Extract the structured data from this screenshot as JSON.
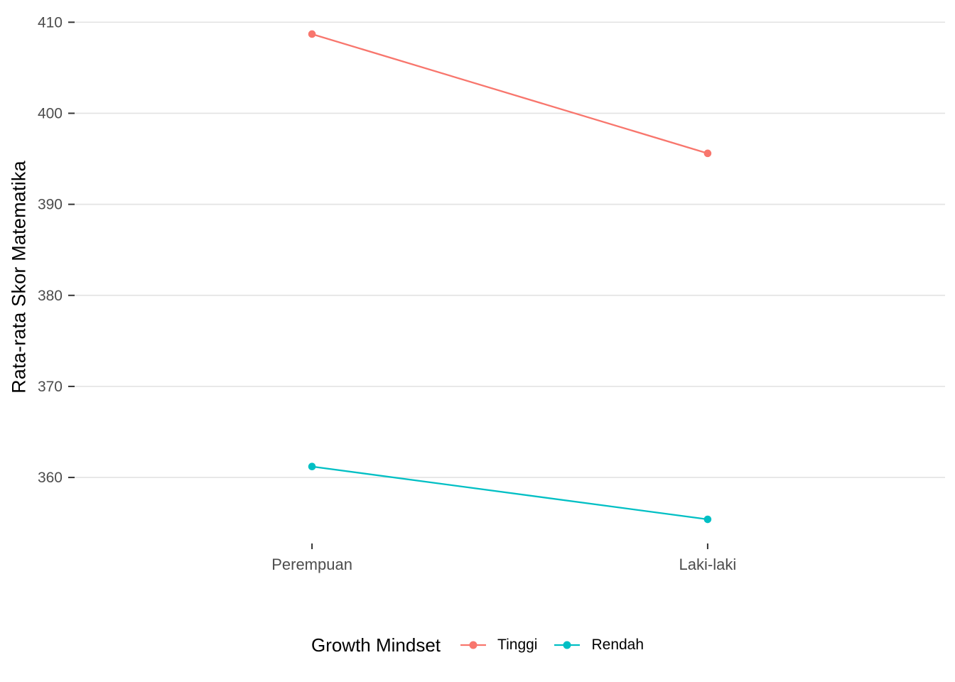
{
  "chart_data": {
    "type": "line",
    "title": "",
    "xlabel": "",
    "ylabel": "Rata-rata Skor Matematika",
    "categories": [
      "Perempuan",
      "Laki-laki"
    ],
    "series": [
      {
        "name": "Tinggi",
        "color": "#F8766D",
        "values": [
          408.7,
          395.6
        ]
      },
      {
        "name": "Rendah",
        "color": "#00BFC4",
        "values": [
          361.2,
          355.4
        ]
      }
    ],
    "y_ticks": [
      360,
      370,
      380,
      390,
      400,
      410
    ],
    "ylim": [
      352.75,
      411.35
    ],
    "grid": "horizontal-major-only",
    "legend": {
      "title": "Growth Mindset",
      "position": "bottom"
    },
    "colors": {
      "grid": "#E3E3E3",
      "tick_mark": "#333333",
      "tick_label": "#4D4D4D",
      "text": "#000000",
      "background": "#FFFFFF"
    }
  }
}
